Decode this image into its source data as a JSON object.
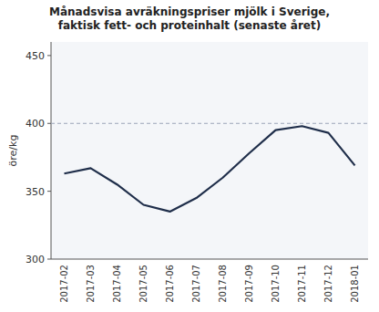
{
  "chart_data": {
    "type": "line",
    "title": "Månadsvisa avräkningspriser mjölk i Sverige,\nfaktisk fett- och proteinhalt (senaste året)",
    "ylabel": "öre/kg",
    "categories": [
      "2017-02",
      "2017-03",
      "2017-04",
      "2017-05",
      "2017-06",
      "2017-07",
      "2017-08",
      "2017-09",
      "2017-10",
      "2017-11",
      "2017-12",
      "2018-01"
    ],
    "values": [
      363,
      367,
      355,
      340,
      335,
      345,
      360,
      378,
      395,
      398,
      393,
      369
    ],
    "color": "#1F2E4A",
    "hline": 400,
    "ylim": [
      300,
      460
    ],
    "yticks": [
      300,
      350,
      400,
      450
    ],
    "grid": false
  }
}
